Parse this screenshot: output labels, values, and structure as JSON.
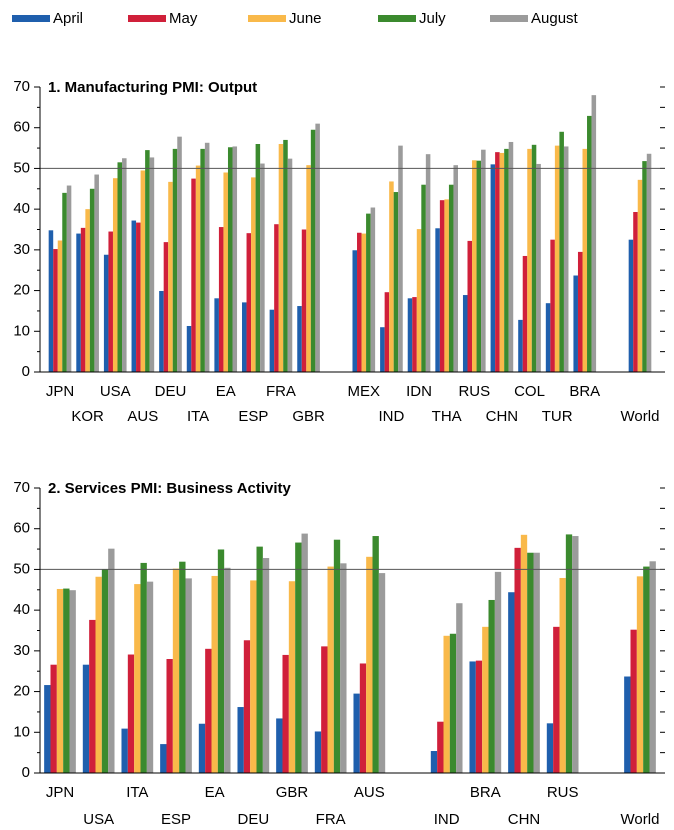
{
  "chart_data": [
    {
      "type": "bar",
      "title": "1. Manufacturing PMI: Output",
      "categories": [
        "JPN",
        "KOR",
        "USA",
        "AUS",
        "DEU",
        "ITA",
        "EA",
        "ESP",
        "FRA",
        "GBR",
        null,
        "MEX",
        "IND",
        "IDN",
        "THA",
        "RUS",
        "CHN",
        "COL",
        "TUR",
        "BRA",
        null,
        "World"
      ],
      "series": [
        {
          "name": "April",
          "color": "#1f5fad",
          "values": [
            34.8,
            34,
            28.8,
            37.2,
            19.9,
            11.3,
            18.1,
            17.1,
            15.3,
            16.2,
            null,
            29.9,
            11,
            18.1,
            35.3,
            18.9,
            51,
            12.8,
            16.9,
            23.7,
            null,
            32.5
          ]
        },
        {
          "name": "May",
          "color": "#d0203a",
          "values": [
            30.2,
            35.4,
            34.5,
            36.7,
            31.9,
            47.5,
            35.6,
            34.1,
            36.3,
            35,
            null,
            34.2,
            19.6,
            18.4,
            42.2,
            32.2,
            54,
            28.5,
            32.5,
            29.5,
            null,
            39.3
          ]
        },
        {
          "name": "June",
          "color": "#f9b94a",
          "values": [
            32.3,
            40,
            47.6,
            49.5,
            46.7,
            50.7,
            49,
            47.8,
            56,
            50.8,
            null,
            34,
            46.8,
            35.1,
            42.4,
            52,
            53.8,
            54.8,
            55.6,
            54.8,
            null,
            47.2
          ]
        },
        {
          "name": "July",
          "color": "#3b8a2e",
          "values": [
            44,
            45,
            51.5,
            54.5,
            54.8,
            54.8,
            55.2,
            56,
            57,
            59.5,
            null,
            38.9,
            44.2,
            46,
            46,
            51.9,
            54.8,
            55.8,
            59,
            62.9,
            null,
            51.8
          ]
        },
        {
          "name": "August",
          "color": "#9b9b9b",
          "values": [
            45.8,
            48.5,
            52.5,
            52.7,
            57.8,
            56.3,
            55.4,
            51.2,
            52.4,
            61,
            null,
            40.4,
            55.6,
            53.5,
            50.8,
            54.6,
            56.5,
            51.1,
            55.4,
            68,
            null,
            53.6
          ]
        }
      ],
      "ylim": [
        0,
        70
      ],
      "yticks": [
        0,
        10,
        20,
        30,
        40,
        50,
        60,
        70
      ],
      "yminorticks": [
        5,
        15,
        25,
        35,
        45,
        55,
        65
      ],
      "hline": 50
    },
    {
      "type": "bar",
      "title": "2. Services PMI: Business Activity",
      "categories": [
        "JPN",
        "USA",
        "ITA",
        "ESP",
        "EA",
        "DEU",
        "GBR",
        "FRA",
        "AUS",
        null,
        "IND",
        "BRA",
        "CHN",
        "RUS",
        null,
        "World"
      ],
      "series": [
        {
          "name": "April",
          "color": "#1f5fad",
          "values": [
            21.6,
            26.6,
            10.9,
            7.1,
            12.1,
            16.2,
            13.4,
            10.2,
            19.5,
            null,
            5.4,
            27.4,
            44.4,
            12.2,
            null,
            23.7
          ]
        },
        {
          "name": "May",
          "color": "#d0203a",
          "values": [
            26.6,
            37.6,
            29.1,
            28,
            30.5,
            32.6,
            29,
            31.1,
            26.9,
            null,
            12.6,
            27.6,
            55.3,
            35.9,
            null,
            35.2
          ]
        },
        {
          "name": "June",
          "color": "#f9b94a",
          "values": [
            45.2,
            48.2,
            46.4,
            50.2,
            48.4,
            47.3,
            47.1,
            50.7,
            53.1,
            null,
            33.7,
            35.9,
            58.5,
            47.9,
            null,
            48.3
          ]
        },
        {
          "name": "July",
          "color": "#3b8a2e",
          "values": [
            45.3,
            50,
            51.6,
            51.9,
            54.9,
            55.6,
            56.6,
            57.3,
            58.2,
            null,
            34.2,
            42.5,
            54.1,
            58.6,
            null,
            50.7
          ]
        },
        {
          "name": "August",
          "color": "#9b9b9b",
          "values": [
            44.9,
            55.1,
            47,
            47.8,
            50.4,
            52.8,
            58.8,
            51.5,
            49.1,
            null,
            41.7,
            49.4,
            54.1,
            58.2,
            null,
            52
          ]
        }
      ],
      "ylim": [
        0,
        70
      ],
      "yticks": [
        0,
        10,
        20,
        30,
        40,
        50,
        60,
        70
      ],
      "yminorticks": [
        5,
        15,
        25,
        35,
        45,
        55,
        65
      ],
      "hline": 50
    }
  ]
}
